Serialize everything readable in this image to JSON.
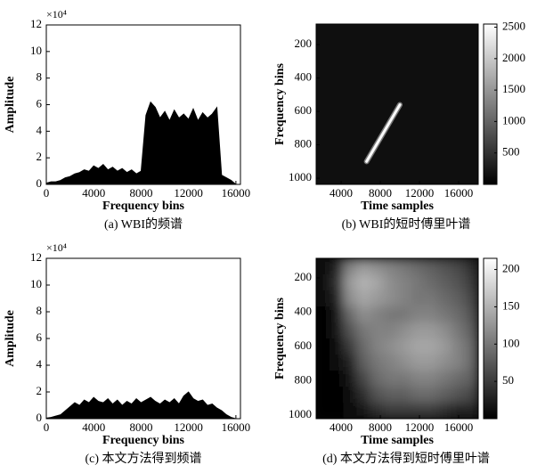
{
  "chart_data": [
    {
      "type": "area",
      "caption": "(a) WBI的频谱",
      "xlabel": "Frequency bins",
      "ylabel": "Amplitude",
      "y_multiplier": "×10⁴",
      "color": "#000000",
      "x": [
        0,
        400,
        800,
        1200,
        1600,
        2000,
        2400,
        2800,
        3200,
        3600,
        4000,
        4400,
        4800,
        5200,
        5600,
        6000,
        6400,
        6800,
        7200,
        7600,
        8000,
        8400,
        8800,
        9200,
        9600,
        10000,
        10400,
        10800,
        11200,
        11600,
        12000,
        12400,
        12800,
        13200,
        13600,
        14000,
        14400,
        14800,
        15200,
        15600,
        16000
      ],
      "values": [
        0.1,
        0.2,
        0.2,
        0.3,
        0.5,
        0.6,
        0.8,
        0.9,
        1.1,
        1.0,
        1.4,
        1.2,
        1.5,
        1.1,
        1.3,
        1.0,
        1.2,
        0.9,
        1.1,
        0.8,
        1.0,
        5.2,
        6.2,
        5.8,
        5.0,
        5.5,
        4.8,
        5.6,
        5.0,
        5.3,
        4.9,
        5.7,
        4.8,
        5.4,
        5.0,
        5.3,
        5.8,
        0.7,
        0.5,
        0.3,
        0
      ],
      "xlim": [
        0,
        16384
      ],
      "xticks": [
        0,
        4000,
        8000,
        12000,
        16000
      ],
      "ylim": [
        0,
        12
      ],
      "yticks": [
        0,
        2,
        4,
        6,
        8,
        10,
        12
      ]
    },
    {
      "type": "heatmap",
      "caption": "(b) WBI的短时傅里叶谱",
      "xlabel": "Time samples",
      "ylabel": "Frequency bins",
      "background_value": 300,
      "ridge": {
        "x": [
          6600,
          10000
        ],
        "y": [
          900,
          560
        ],
        "value": 2500
      },
      "xlim": [
        1450,
        18000
      ],
      "xticks": [
        4000,
        8000,
        12000,
        16000
      ],
      "ylim": [
        1037,
        77
      ],
      "yticks": [
        200,
        400,
        600,
        800,
        1000
      ],
      "clim": [
        0,
        2550
      ],
      "cticks": [
        500,
        1000,
        1500,
        2000,
        2500
      ]
    },
    {
      "type": "area",
      "caption": "(c) 本文方法得到频谱",
      "xlabel": "Frequency bins",
      "ylabel": "Amplitude",
      "y_multiplier": "×10⁴",
      "color": "#000000",
      "x": [
        0,
        400,
        800,
        1200,
        1600,
        2000,
        2400,
        2800,
        3200,
        3600,
        4000,
        4400,
        4800,
        5200,
        5600,
        6000,
        6400,
        6800,
        7200,
        7600,
        8000,
        8400,
        8800,
        9200,
        9600,
        10000,
        10400,
        10800,
        11200,
        11600,
        12000,
        12400,
        12800,
        13200,
        13600,
        14000,
        14400,
        14800,
        15200,
        15600,
        16000
      ],
      "values": [
        0.05,
        0.1,
        0.2,
        0.3,
        0.6,
        0.9,
        1.2,
        1.0,
        1.4,
        1.2,
        1.6,
        1.3,
        1.2,
        1.5,
        1.1,
        1.4,
        1.0,
        1.3,
        1.1,
        1.5,
        1.2,
        1.4,
        1.6,
        1.3,
        1.1,
        1.4,
        1.2,
        1.5,
        1.1,
        1.7,
        2.0,
        1.5,
        1.3,
        1.4,
        1.0,
        1.1,
        0.8,
        0.6,
        0.3,
        0.1,
        0
      ],
      "xlim": [
        0,
        16384
      ],
      "xticks": [
        0,
        4000,
        8000,
        12000,
        16000
      ],
      "ylim": [
        0,
        12
      ],
      "yticks": [
        0,
        2,
        4,
        6,
        8,
        10,
        12
      ]
    },
    {
      "type": "heatmap",
      "caption": "(d) 本文方法得到短时傅里叶谱",
      "xlabel": "Time samples",
      "ylabel": "Frequency bins",
      "z": [
        [
          10,
          30,
          110,
          130,
          120,
          110,
          100,
          90,
          80,
          70,
          60,
          40
        ],
        [
          10,
          40,
          130,
          150,
          140,
          120,
          110,
          100,
          90,
          80,
          70,
          50
        ],
        [
          10,
          30,
          120,
          140,
          130,
          120,
          110,
          100,
          100,
          90,
          80,
          60
        ],
        [
          5,
          20,
          90,
          120,
          110,
          100,
          100,
          110,
          110,
          100,
          90,
          70
        ],
        [
          5,
          15,
          70,
          100,
          110,
          110,
          120,
          130,
          130,
          120,
          100,
          80
        ],
        [
          5,
          10,
          50,
          90,
          110,
          120,
          130,
          140,
          140,
          130,
          110,
          90
        ],
        [
          5,
          8,
          30,
          80,
          100,
          110,
          120,
          130,
          130,
          120,
          110,
          90
        ],
        [
          3,
          5,
          20,
          60,
          90,
          100,
          100,
          110,
          110,
          100,
          90,
          80
        ],
        [
          3,
          5,
          10,
          40,
          70,
          80,
          80,
          90,
          90,
          80,
          70,
          60
        ],
        [
          2,
          4,
          8,
          20,
          40,
          50,
          50,
          50,
          50,
          40,
          30,
          30
        ]
      ],
      "xlim": [
        1450,
        18000
      ],
      "xticks": [
        4000,
        8000,
        12000,
        16000
      ],
      "ylim": [
        1021,
        86
      ],
      "yticks": [
        200,
        400,
        600,
        800,
        1000
      ],
      "clim": [
        0,
        215
      ],
      "cticks": [
        50,
        100,
        150,
        200
      ]
    }
  ]
}
